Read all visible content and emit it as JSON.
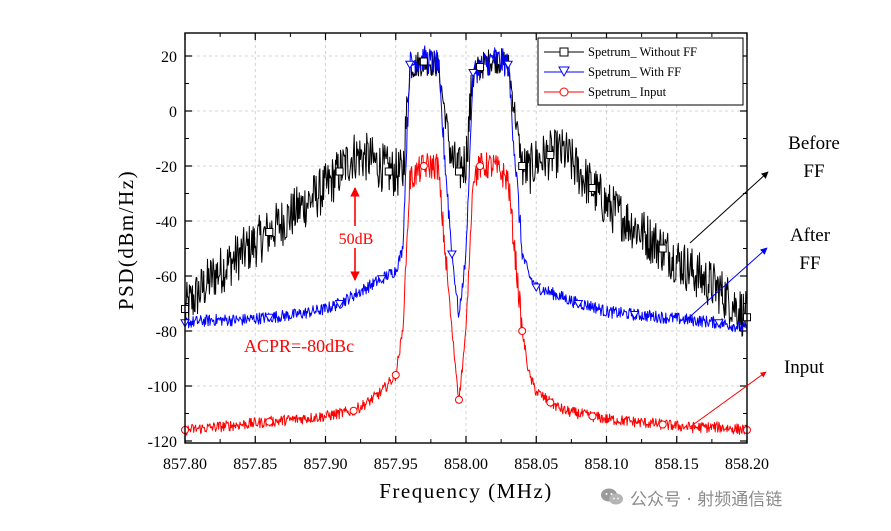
{
  "chart_data": {
    "type": "line",
    "xlabel": "Frequency (MHz)",
    "ylabel": "PSD(dBm/Hz)",
    "xlim": [
      857.8,
      858.2
    ],
    "ylim": [
      -120,
      30
    ],
    "x_ticks": [
      "857.80",
      "857.85",
      "857.90",
      "857.95",
      "858.00",
      "858.05",
      "858.10",
      "858.15",
      "858.20"
    ],
    "y_ticks": [
      "20",
      "0",
      "-20",
      "-40",
      "-60",
      "-80",
      "-100",
      "-120"
    ],
    "grid": true,
    "legend_position": "top-right",
    "series": [
      {
        "name": "Spetrum_ Without FF",
        "color": "#000000",
        "marker": "square",
        "x": [
          857.8,
          857.82,
          857.84,
          857.86,
          857.88,
          857.9,
          857.91,
          857.92,
          857.93,
          857.945,
          857.955,
          857.96,
          857.97,
          857.98,
          857.99,
          857.995,
          858.0,
          858.005,
          858.01,
          858.02,
          858.03,
          858.04,
          858.045,
          858.05,
          858.06,
          858.07,
          858.08,
          858.09,
          858.1,
          858.12,
          858.14,
          858.16,
          858.18,
          858.2
        ],
        "y": [
          -72,
          -60,
          -52,
          -44,
          -36,
          -28,
          -22,
          -16,
          -17,
          -22,
          -23,
          16,
          18,
          17,
          -18,
          -22,
          -18,
          14,
          16,
          19,
          17,
          -20,
          -22,
          -18,
          -16,
          -15,
          -22,
          -28,
          -34,
          -42,
          -50,
          -58,
          -65,
          -75
        ]
      },
      {
        "name": "Spetrum_ With FF",
        "color": "#0000ff",
        "marker": "triangle-down",
        "x": [
          857.8,
          857.82,
          857.84,
          857.86,
          857.88,
          857.9,
          857.91,
          857.92,
          857.93,
          857.94,
          857.95,
          857.955,
          857.96,
          857.97,
          857.98,
          857.99,
          857.995,
          858.0,
          858.005,
          858.01,
          858.02,
          858.03,
          858.04,
          858.045,
          858.05,
          858.06,
          858.07,
          858.08,
          858.09,
          858.1,
          858.12,
          858.14,
          858.16,
          858.18,
          858.2
        ],
        "y": [
          -77,
          -76,
          -76,
          -75,
          -74,
          -72,
          -70,
          -67,
          -64,
          -61,
          -58,
          -50,
          17,
          19,
          17,
          -52,
          -75,
          -52,
          14,
          16,
          19,
          17,
          -52,
          -60,
          -64,
          -66,
          -68,
          -70,
          -71,
          -73,
          -74,
          -75,
          -76,
          -77,
          -79
        ]
      },
      {
        "name": "Spetrum_ Input",
        "color": "#ff0000",
        "marker": "circle",
        "x": [
          857.8,
          857.82,
          857.84,
          857.86,
          857.88,
          857.9,
          857.92,
          857.93,
          857.94,
          857.95,
          857.955,
          857.96,
          857.97,
          857.98,
          857.99,
          857.995,
          858.0,
          858.005,
          858.01,
          858.02,
          858.03,
          858.04,
          858.045,
          858.05,
          858.06,
          858.07,
          858.08,
          858.09,
          858.1,
          858.12,
          858.14,
          858.16,
          858.18,
          858.2
        ],
        "y": [
          -116,
          -115,
          -114,
          -113,
          -112,
          -111,
          -109,
          -106,
          -102,
          -96,
          -80,
          -25,
          -20,
          -20,
          -80,
          -105,
          -80,
          -25,
          -20,
          -20,
          -25,
          -80,
          -96,
          -102,
          -106,
          -109,
          -110,
          -111,
          -112,
          -113,
          -114,
          -115,
          -115,
          -116
        ]
      }
    ],
    "annotations": {
      "dB50": "50dB",
      "acpr": "ACPR=-80dBc",
      "before_ff": [
        "Before",
        "FF"
      ],
      "after_ff": [
        "After",
        "FF"
      ],
      "input": "Input"
    },
    "annotation_colors": {
      "red": "#ff0000",
      "blue": "#0000ff",
      "black": "#000000"
    }
  },
  "watermark": {
    "text": "公众号 · 射频通信链",
    "icon": "wechat-icon"
  }
}
